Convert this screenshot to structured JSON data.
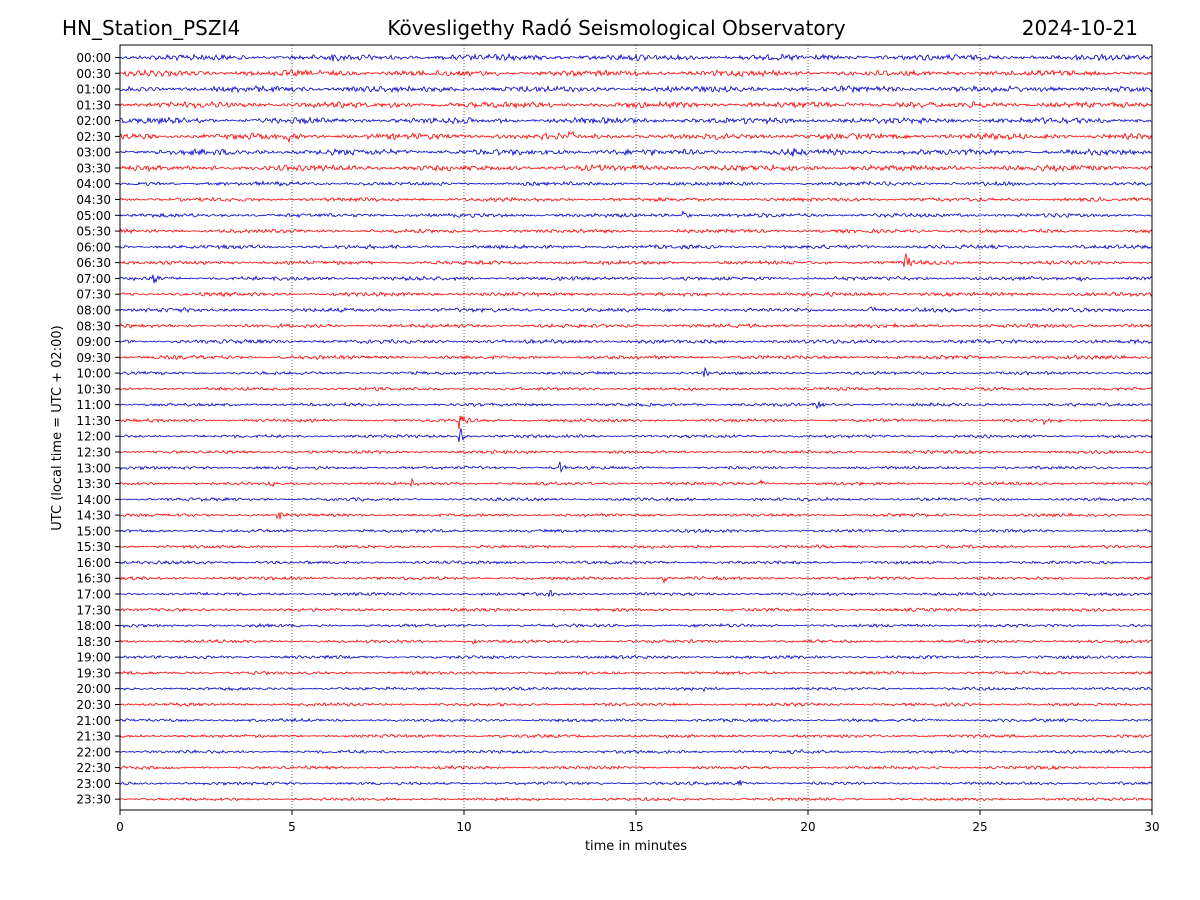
{
  "header": {
    "station": "HN_Station_PSZI4",
    "title": "Kövesligethy Radó Seismological Observatory",
    "date": "2024-10-21"
  },
  "chart_data": {
    "type": "line",
    "title": "Kövesligethy Radó Seismological Observatory",
    "xlabel": "time in minutes",
    "ylabel": "UTC (local time = UTC + 02:00)",
    "xlim": [
      0,
      30
    ],
    "xticks": [
      0,
      5,
      10,
      15,
      20,
      25,
      30
    ],
    "grid": "vertical dotted at x ticks",
    "colors": [
      "#0000cc",
      "#ff0000"
    ],
    "rows": [
      "00:00",
      "00:30",
      "01:00",
      "01:30",
      "02:00",
      "02:30",
      "03:00",
      "03:30",
      "04:00",
      "04:30",
      "05:00",
      "05:30",
      "06:00",
      "06:30",
      "07:00",
      "07:30",
      "08:00",
      "08:30",
      "09:00",
      "09:30",
      "10:00",
      "10:30",
      "11:00",
      "11:30",
      "12:00",
      "12:30",
      "13:00",
      "13:30",
      "14:00",
      "14:30",
      "15:00",
      "15:30",
      "16:00",
      "16:30",
      "17:00",
      "17:30",
      "18:00",
      "18:30",
      "19:00",
      "19:30",
      "20:00",
      "20:30",
      "21:00",
      "21:30",
      "22:00",
      "22:30",
      "23:00",
      "23:30"
    ],
    "events": [
      {
        "row": "00:00",
        "x": 6.2,
        "amp": 5
      },
      {
        "row": "00:00",
        "x": 11.3,
        "amp": 4
      },
      {
        "row": "02:30",
        "x": 4.9,
        "amp": 6
      },
      {
        "row": "02:30",
        "x": 13.1,
        "amp": 7
      },
      {
        "row": "03:00",
        "x": 19.6,
        "amp": 5
      },
      {
        "row": "05:00",
        "x": 16.4,
        "amp": 5
      },
      {
        "row": "06:30",
        "x": 22.8,
        "amp": 16
      },
      {
        "row": "07:00",
        "x": 1.0,
        "amp": 6
      },
      {
        "row": "07:00",
        "x": 27.9,
        "amp": 5
      },
      {
        "row": "08:00",
        "x": 21.8,
        "amp": 8
      },
      {
        "row": "10:00",
        "x": 17.0,
        "amp": 6
      },
      {
        "row": "11:00",
        "x": 20.3,
        "amp": 5
      },
      {
        "row": "11:30",
        "x": 9.9,
        "amp": 12
      },
      {
        "row": "11:30",
        "x": 26.9,
        "amp": 5
      },
      {
        "row": "12:00",
        "x": 9.9,
        "amp": 11
      },
      {
        "row": "13:00",
        "x": 12.8,
        "amp": 6
      },
      {
        "row": "13:30",
        "x": 4.4,
        "amp": 5
      },
      {
        "row": "13:30",
        "x": 8.5,
        "amp": 5
      },
      {
        "row": "13:30",
        "x": 18.6,
        "amp": 6
      },
      {
        "row": "14:30",
        "x": 4.6,
        "amp": 7
      },
      {
        "row": "16:30",
        "x": 15.8,
        "amp": 5
      },
      {
        "row": "17:00",
        "x": 12.5,
        "amp": 5
      },
      {
        "row": "18:30",
        "x": 10.3,
        "amp": 4
      },
      {
        "row": "20:00",
        "x": 17.0,
        "amp": 4
      },
      {
        "row": "22:00",
        "x": 19.8,
        "amp": 3
      },
      {
        "row": "23:00",
        "x": 18.0,
        "amp": 4
      }
    ]
  }
}
